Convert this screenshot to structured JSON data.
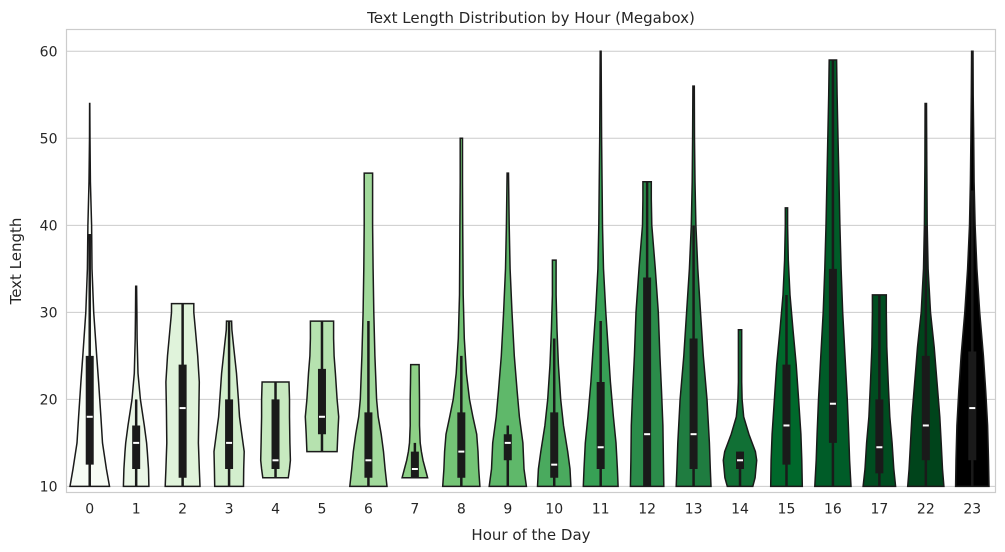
{
  "chart_data": {
    "type": "violin",
    "title": "Text Length Distribution by Hour (Megabox)",
    "xlabel": "Hour of the Day",
    "ylabel": "Text Length",
    "ylim": [
      9.3,
      62.5
    ],
    "yticks": [
      10,
      20,
      30,
      40,
      50,
      60
    ],
    "grid": true,
    "palette": [
      "#f7fcf5",
      "#eaf6e6",
      "#e0f3db",
      "#d3eecd",
      "#c7e9c0",
      "#b6e2af",
      "#a1d99b",
      "#8dd086",
      "#74c476",
      "#5fb86a",
      "#4aaa5e",
      "#37a055",
      "#2b8c4a",
      "#1f7c40",
      "#117035",
      "#00682b",
      "#005c28",
      "#004d20",
      "#00441b"
    ],
    "categories": [
      "0",
      "1",
      "2",
      "3",
      "4",
      "5",
      "6",
      "7",
      "8",
      "9",
      "10",
      "11",
      "12",
      "13",
      "14",
      "15",
      "16",
      "17",
      "22",
      "23"
    ],
    "violins": [
      {
        "cat": "0",
        "min": 10,
        "q1": 12.5,
        "median": 18,
        "q3": 25,
        "wlo": 10,
        "whi": 39,
        "max": 54,
        "profile": [
          [
            10,
            0.85
          ],
          [
            12,
            0.72
          ],
          [
            15,
            0.55
          ],
          [
            18,
            0.48
          ],
          [
            22,
            0.38
          ],
          [
            25,
            0.3
          ],
          [
            30,
            0.17
          ],
          [
            35,
            0.1
          ],
          [
            40,
            0.08
          ],
          [
            45,
            0.03
          ],
          [
            50,
            0.01
          ],
          [
            54,
            0.005
          ]
        ]
      },
      {
        "cat": "1",
        "min": 10,
        "q1": 12,
        "median": 15,
        "q3": 17,
        "wlo": 10,
        "whi": 20,
        "max": 33,
        "profile": [
          [
            10,
            0.55
          ],
          [
            12,
            0.53
          ],
          [
            14,
            0.48
          ],
          [
            15,
            0.45
          ],
          [
            17,
            0.35
          ],
          [
            20,
            0.18
          ],
          [
            23,
            0.08
          ],
          [
            27,
            0.04
          ],
          [
            30,
            0.03
          ],
          [
            33,
            0.02
          ]
        ]
      },
      {
        "cat": "2",
        "min": 10,
        "q1": 11,
        "median": 19,
        "q3": 24,
        "wlo": 10,
        "whi": 31,
        "max": 31,
        "profile": [
          [
            10,
            0.75
          ],
          [
            12,
            0.72
          ],
          [
            15,
            0.68
          ],
          [
            19,
            0.7
          ],
          [
            22,
            0.72
          ],
          [
            25,
            0.65
          ],
          [
            28,
            0.55
          ],
          [
            30,
            0.48
          ],
          [
            31,
            0.48
          ]
        ]
      },
      {
        "cat": "3",
        "min": 10,
        "q1": 12,
        "median": 15,
        "q3": 20,
        "wlo": 10,
        "whi": 29,
        "max": 29,
        "profile": [
          [
            10,
            0.62
          ],
          [
            12,
            0.63
          ],
          [
            14,
            0.65
          ],
          [
            16,
            0.55
          ],
          [
            18,
            0.45
          ],
          [
            20,
            0.4
          ],
          [
            23,
            0.32
          ],
          [
            26,
            0.2
          ],
          [
            28,
            0.12
          ],
          [
            29,
            0.11
          ]
        ]
      },
      {
        "cat": "4",
        "min": 11,
        "q1": 12,
        "median": 13,
        "q3": 20,
        "wlo": 11,
        "whi": 22,
        "max": 22,
        "profile": [
          [
            11,
            0.55
          ],
          [
            12,
            0.6
          ],
          [
            13,
            0.64
          ],
          [
            15,
            0.62
          ],
          [
            18,
            0.6
          ],
          [
            20,
            0.6
          ],
          [
            22,
            0.58
          ]
        ]
      },
      {
        "cat": "5",
        "min": 14,
        "q1": 16,
        "median": 18,
        "q3": 23.5,
        "wlo": 14,
        "whi": 29,
        "max": 29,
        "profile": [
          [
            14,
            0.65
          ],
          [
            16,
            0.68
          ],
          [
            18,
            0.72
          ],
          [
            20,
            0.65
          ],
          [
            23,
            0.58
          ],
          [
            25,
            0.52
          ],
          [
            27,
            0.5
          ],
          [
            29,
            0.5
          ]
        ]
      },
      {
        "cat": "6",
        "min": 10,
        "q1": 11,
        "median": 13,
        "q3": 18.5,
        "wlo": 10,
        "whi": 29,
        "max": 46,
        "profile": [
          [
            10,
            0.8
          ],
          [
            12,
            0.72
          ],
          [
            14,
            0.65
          ],
          [
            16,
            0.55
          ],
          [
            18,
            0.42
          ],
          [
            20,
            0.35
          ],
          [
            25,
            0.28
          ],
          [
            30,
            0.23
          ],
          [
            35,
            0.2
          ],
          [
            40,
            0.18
          ],
          [
            46,
            0.18
          ]
        ]
      },
      {
        "cat": "7",
        "min": 11,
        "q1": 11,
        "median": 12,
        "q3": 14,
        "wlo": 11,
        "whi": 15,
        "max": 24,
        "profile": [
          [
            11,
            0.55
          ],
          [
            12,
            0.45
          ],
          [
            13,
            0.35
          ],
          [
            14,
            0.28
          ],
          [
            15,
            0.23
          ],
          [
            17,
            0.2
          ],
          [
            20,
            0.2
          ],
          [
            22,
            0.19
          ],
          [
            24,
            0.18
          ]
        ]
      },
      {
        "cat": "8",
        "min": 10,
        "q1": 11,
        "median": 14,
        "q3": 18.5,
        "wlo": 10,
        "whi": 25,
        "max": 50,
        "profile": [
          [
            10,
            0.8
          ],
          [
            12,
            0.75
          ],
          [
            14,
            0.72
          ],
          [
            16,
            0.66
          ],
          [
            18,
            0.5
          ],
          [
            20,
            0.35
          ],
          [
            23,
            0.22
          ],
          [
            27,
            0.13
          ],
          [
            32,
            0.08
          ],
          [
            40,
            0.06
          ],
          [
            45,
            0.05
          ],
          [
            50,
            0.05
          ]
        ]
      },
      {
        "cat": "9",
        "min": 10,
        "q1": 13,
        "median": 15,
        "q3": 16,
        "wlo": 10,
        "whi": 17,
        "max": 46,
        "profile": [
          [
            10,
            0.8
          ],
          [
            12,
            0.7
          ],
          [
            15,
            0.65
          ],
          [
            18,
            0.5
          ],
          [
            21,
            0.4
          ],
          [
            25,
            0.28
          ],
          [
            30,
            0.18
          ],
          [
            35,
            0.1
          ],
          [
            40,
            0.06
          ],
          [
            46,
            0.03
          ]
        ]
      },
      {
        "cat": "10",
        "min": 10,
        "q1": 11,
        "median": 12.5,
        "q3": 18.5,
        "wlo": 10,
        "whi": 27,
        "max": 36,
        "profile": [
          [
            10,
            0.72
          ],
          [
            12,
            0.68
          ],
          [
            14,
            0.58
          ],
          [
            17,
            0.4
          ],
          [
            20,
            0.28
          ],
          [
            24,
            0.18
          ],
          [
            28,
            0.12
          ],
          [
            32,
            0.08
          ],
          [
            36,
            0.08
          ]
        ]
      },
      {
        "cat": "11",
        "min": 10,
        "q1": 12,
        "median": 14.5,
        "q3": 22,
        "wlo": 10,
        "whi": 29,
        "max": 60,
        "profile": [
          [
            10,
            0.75
          ],
          [
            12,
            0.72
          ],
          [
            15,
            0.66
          ],
          [
            18,
            0.55
          ],
          [
            22,
            0.42
          ],
          [
            26,
            0.32
          ],
          [
            30,
            0.22
          ],
          [
            35,
            0.12
          ],
          [
            40,
            0.08
          ],
          [
            50,
            0.04
          ],
          [
            60,
            0.02
          ]
        ]
      },
      {
        "cat": "12",
        "min": 10,
        "q1": 10,
        "median": 16,
        "q3": 34,
        "wlo": 10,
        "whi": 45,
        "max": 45,
        "profile": [
          [
            10,
            0.72
          ],
          [
            13,
            0.7
          ],
          [
            17,
            0.68
          ],
          [
            21,
            0.62
          ],
          [
            25,
            0.55
          ],
          [
            30,
            0.48
          ],
          [
            35,
            0.35
          ],
          [
            40,
            0.2
          ],
          [
            43,
            0.18
          ],
          [
            45,
            0.18
          ]
        ]
      },
      {
        "cat": "13",
        "min": 10,
        "q1": 12,
        "median": 16,
        "q3": 27,
        "wlo": 10,
        "whi": 40,
        "max": 56,
        "profile": [
          [
            10,
            0.75
          ],
          [
            12,
            0.72
          ],
          [
            15,
            0.68
          ],
          [
            20,
            0.58
          ],
          [
            25,
            0.42
          ],
          [
            30,
            0.3
          ],
          [
            35,
            0.18
          ],
          [
            40,
            0.1
          ],
          [
            45,
            0.06
          ],
          [
            50,
            0.04
          ],
          [
            56,
            0.03
          ]
        ]
      },
      {
        "cat": "14",
        "min": 10,
        "q1": 12,
        "median": 13,
        "q3": 14,
        "wlo": 10,
        "whi": 14,
        "max": 28,
        "profile": [
          [
            10,
            0.55
          ],
          [
            11,
            0.65
          ],
          [
            13,
            0.72
          ],
          [
            14,
            0.66
          ],
          [
            16,
            0.38
          ],
          [
            18,
            0.16
          ],
          [
            20,
            0.09
          ],
          [
            22,
            0.07
          ],
          [
            25,
            0.07
          ],
          [
            28,
            0.07
          ]
        ]
      },
      {
        "cat": "15",
        "min": 10,
        "q1": 12.5,
        "median": 17,
        "q3": 24,
        "wlo": 10,
        "whi": 32,
        "max": 42,
        "profile": [
          [
            10,
            0.68
          ],
          [
            13,
            0.66
          ],
          [
            16,
            0.62
          ],
          [
            20,
            0.52
          ],
          [
            24,
            0.42
          ],
          [
            28,
            0.28
          ],
          [
            32,
            0.15
          ],
          [
            36,
            0.08
          ],
          [
            40,
            0.05
          ],
          [
            42,
            0.05
          ]
        ]
      },
      {
        "cat": "16",
        "min": 10,
        "q1": 15,
        "median": 19.5,
        "q3": 35,
        "wlo": 10,
        "whi": 59,
        "max": 59,
        "profile": [
          [
            10,
            0.78
          ],
          [
            13,
            0.72
          ],
          [
            16,
            0.68
          ],
          [
            20,
            0.62
          ],
          [
            25,
            0.52
          ],
          [
            30,
            0.42
          ],
          [
            35,
            0.35
          ],
          [
            40,
            0.3
          ],
          [
            45,
            0.26
          ],
          [
            50,
            0.22
          ],
          [
            55,
            0.18
          ],
          [
            59,
            0.16
          ]
        ]
      },
      {
        "cat": "17",
        "min": 10,
        "q1": 11.5,
        "median": 14.5,
        "q3": 20,
        "wlo": 10,
        "whi": 32,
        "max": 32,
        "profile": [
          [
            10,
            0.7
          ],
          [
            12,
            0.62
          ],
          [
            15,
            0.55
          ],
          [
            18,
            0.45
          ],
          [
            22,
            0.38
          ],
          [
            26,
            0.32
          ],
          [
            30,
            0.3
          ],
          [
            32,
            0.3
          ]
        ]
      },
      {
        "cat": "22",
        "min": 10,
        "q1": 13,
        "median": 17,
        "q3": 25,
        "wlo": 10,
        "whi": 40,
        "max": 54,
        "profile": [
          [
            10,
            0.78
          ],
          [
            12,
            0.72
          ],
          [
            15,
            0.66
          ],
          [
            18,
            0.6
          ],
          [
            22,
            0.48
          ],
          [
            26,
            0.36
          ],
          [
            30,
            0.2
          ],
          [
            35,
            0.1
          ],
          [
            40,
            0.06
          ],
          [
            47,
            0.04
          ],
          [
            54,
            0.03
          ]
        ]
      },
      {
        "cat": "23",
        "min": 10,
        "q1": 13,
        "median": 19,
        "q3": 25.5,
        "wlo": 10,
        "whi": 44,
        "max": 60,
        "profile": [
          [
            10,
            0.72
          ],
          [
            13,
            0.7
          ],
          [
            17,
            0.66
          ],
          [
            21,
            0.58
          ],
          [
            25,
            0.48
          ],
          [
            30,
            0.32
          ],
          [
            35,
            0.2
          ],
          [
            40,
            0.12
          ],
          [
            45,
            0.08
          ],
          [
            50,
            0.06
          ],
          [
            55,
            0.04
          ],
          [
            60,
            0.03
          ]
        ]
      }
    ]
  }
}
